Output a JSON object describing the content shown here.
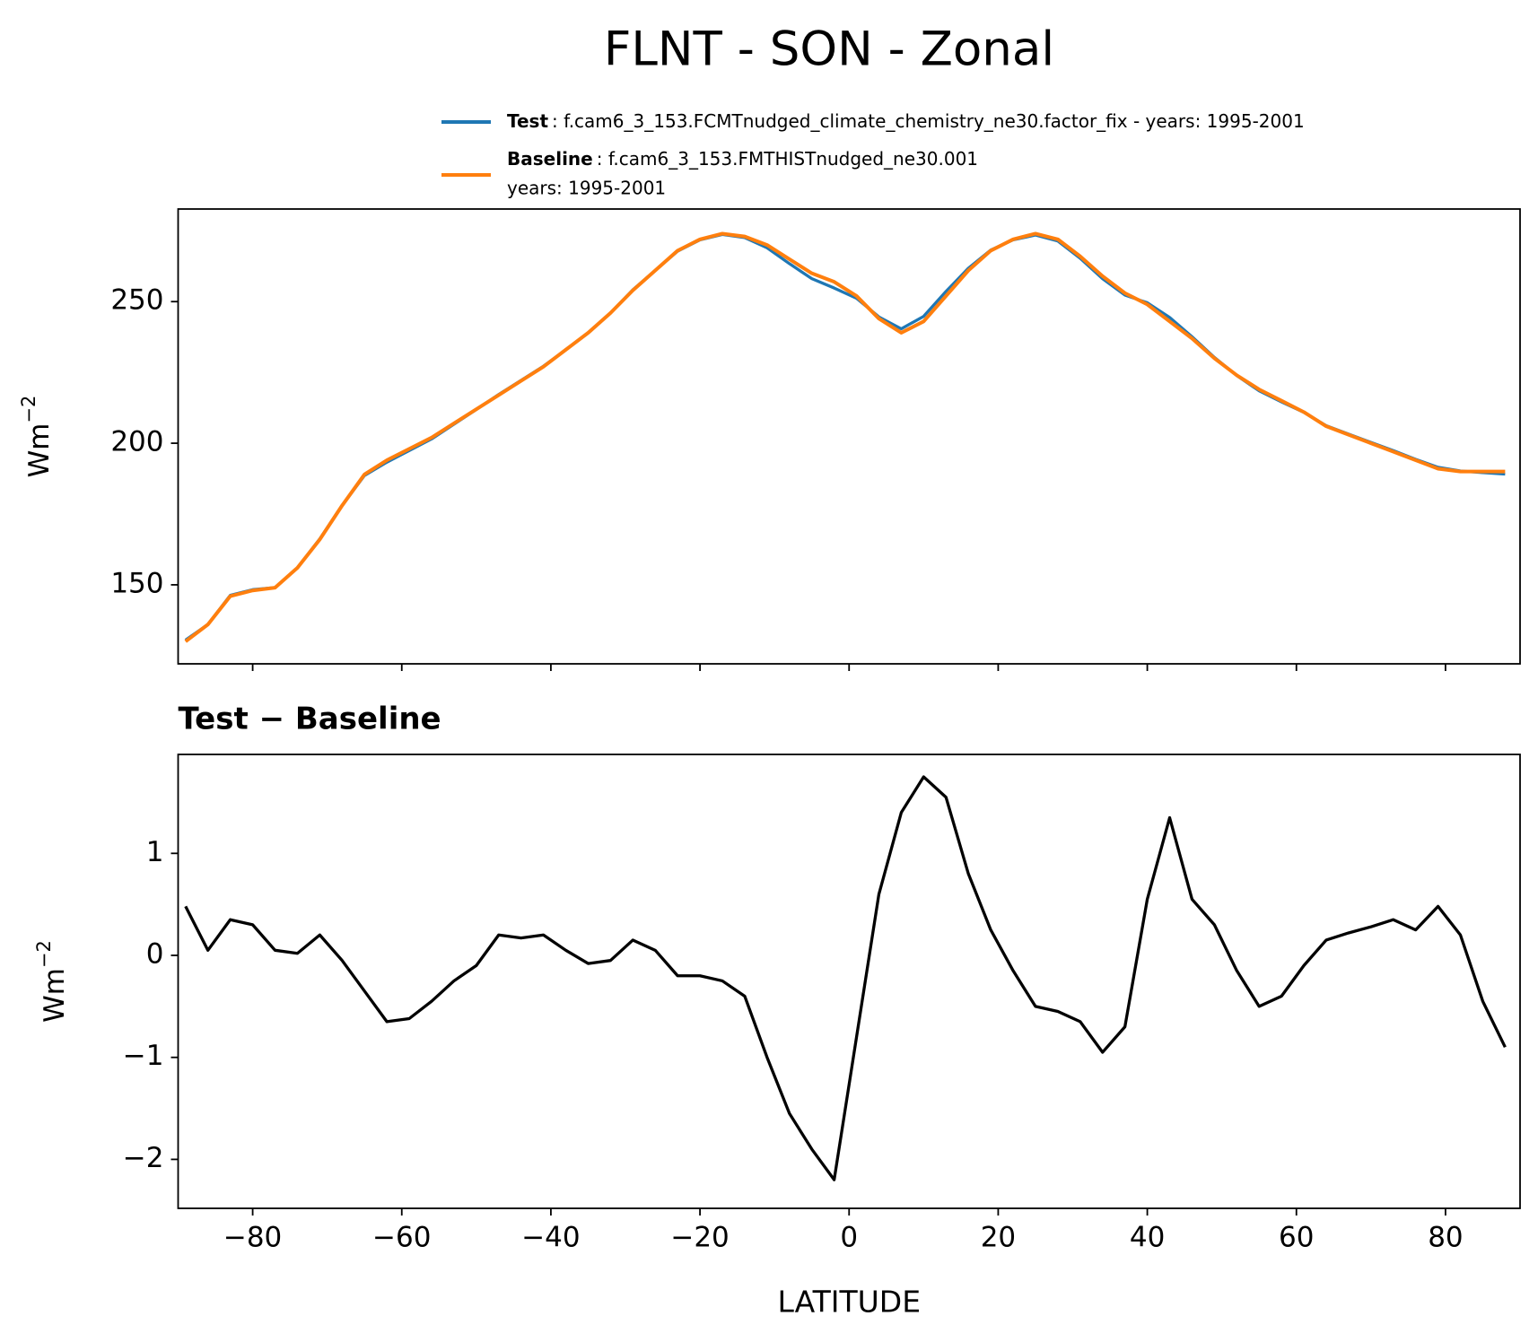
{
  "chart_data": [
    {
      "type": "line",
      "title": "FLNT - SON - Zonal",
      "ylabel": "Wm",
      "ylabel_exponent": "−2",
      "x": [
        -89,
        -86,
        -83,
        -80,
        -77,
        -74,
        -71,
        -68,
        -65,
        -62,
        -59,
        -56,
        -53,
        -50,
        -47,
        -44,
        -41,
        -38,
        -35,
        -32,
        -29,
        -26,
        -23,
        -20,
        -17,
        -14,
        -11,
        -8,
        -5,
        -2,
        1,
        4,
        7,
        10,
        13,
        16,
        19,
        22,
        25,
        28,
        31,
        34,
        37,
        40,
        43,
        46,
        49,
        52,
        55,
        58,
        61,
        64,
        67,
        70,
        73,
        76,
        79,
        82,
        85,
        88
      ],
      "series": [
        {
          "name": "Test",
          "description": [
            ": f.cam6_3_153.FCMTnudged_climate_chemistry_ne30.factor_fix - years: 1995-2001"
          ],
          "color": "#1f77b4",
          "values": [
            130.5,
            136,
            146.3,
            148.3,
            149,
            156,
            166.2,
            178,
            188.6,
            193.3,
            197.4,
            201.5,
            206.7,
            211.9,
            217.2,
            222.2,
            227.2,
            233,
            238.9,
            246,
            254.2,
            261,
            267.8,
            271.8,
            273.7,
            272.6,
            269,
            263.4,
            258.1,
            254.8,
            251.2,
            244.6,
            240.4,
            244.8,
            253.6,
            261.8,
            268.2,
            271.8,
            273.5,
            271.4,
            265.3,
            258.1,
            252.3,
            249.6,
            244.4,
            237.6,
            230.3,
            223.9,
            218.5,
            214.6,
            210.9,
            206.2,
            203.2,
            200.3,
            197.4,
            194.3,
            191.5,
            190.2,
            189.6,
            189.1
          ]
        },
        {
          "name": "Baseline",
          "description": [
            ": f.cam6_3_153.FMTHISTnudged_ne30.001",
            "years: 1995-2001"
          ],
          "color": "#ff7f0e",
          "values": [
            130,
            136,
            146,
            148,
            149,
            156,
            166,
            178,
            189,
            194,
            198,
            202,
            207,
            212,
            217,
            222,
            227,
            233,
            239,
            246,
            254,
            261,
            268,
            272,
            274,
            273,
            270,
            265,
            260,
            257,
            252,
            244,
            239,
            243,
            252,
            261,
            268,
            272,
            274,
            272,
            266,
            259,
            253,
            249,
            243,
            237,
            230,
            224,
            219,
            215,
            211,
            206,
            203,
            200,
            197,
            194,
            191,
            190,
            190,
            190
          ]
        }
      ],
      "xlim": [
        -90,
        90
      ],
      "xticks": [
        -80,
        -60,
        -40,
        -20,
        0,
        20,
        40,
        60,
        80
      ],
      "ylim": [
        122.1,
        282.7
      ],
      "yticks": [
        150,
        200,
        250
      ]
    },
    {
      "type": "line",
      "title": "Test − Baseline",
      "xlabel": "LATITUDE",
      "ylabel": "Wm",
      "ylabel_exponent": "−2",
      "x": [
        -89,
        -86,
        -83,
        -80,
        -77,
        -74,
        -71,
        -68,
        -65,
        -62,
        -59,
        -56,
        -53,
        -50,
        -47,
        -44,
        -41,
        -38,
        -35,
        -32,
        -29,
        -26,
        -23,
        -20,
        -17,
        -14,
        -11,
        -8,
        -5,
        -2,
        1,
        4,
        7,
        10,
        13,
        16,
        19,
        22,
        25,
        28,
        31,
        34,
        37,
        40,
        43,
        46,
        49,
        52,
        55,
        58,
        61,
        64,
        67,
        70,
        73,
        76,
        79,
        82,
        85,
        88
      ],
      "series": [
        {
          "color": "#000000",
          "values": [
            0.48,
            0.05,
            0.35,
            0.3,
            0.05,
            0.02,
            0.2,
            -0.05,
            -0.35,
            -0.65,
            -0.62,
            -0.45,
            -0.25,
            -0.1,
            0.2,
            0.17,
            0.2,
            0.05,
            -0.08,
            -0.05,
            0.15,
            0.05,
            -0.2,
            -0.2,
            -0.25,
            -0.4,
            -1.0,
            -1.55,
            -1.9,
            -2.2,
            -0.8,
            0.6,
            1.4,
            1.75,
            1.55,
            0.8,
            0.25,
            -0.15,
            -0.5,
            -0.55,
            -0.65,
            -0.95,
            -0.7,
            0.55,
            1.35,
            0.55,
            0.3,
            -0.15,
            -0.5,
            -0.4,
            -0.1,
            0.15,
            0.22,
            0.28,
            0.35,
            0.25,
            0.48,
            0.2,
            -0.45,
            -0.9
          ]
        }
      ],
      "xlim": [
        -90,
        90
      ],
      "xticks": [
        {
          "value": -80,
          "label": "−80"
        },
        {
          "value": -60,
          "label": "−60"
        },
        {
          "value": -40,
          "label": "−40"
        },
        {
          "value": -20,
          "label": "−20"
        },
        0,
        20,
        40,
        60,
        80
      ],
      "ylim": [
        -2.48,
        1.97
      ],
      "yticks": [
        {
          "value": -2,
          "label": "−2"
        },
        {
          "value": -1,
          "label": "−1"
        },
        0,
        1
      ]
    }
  ]
}
